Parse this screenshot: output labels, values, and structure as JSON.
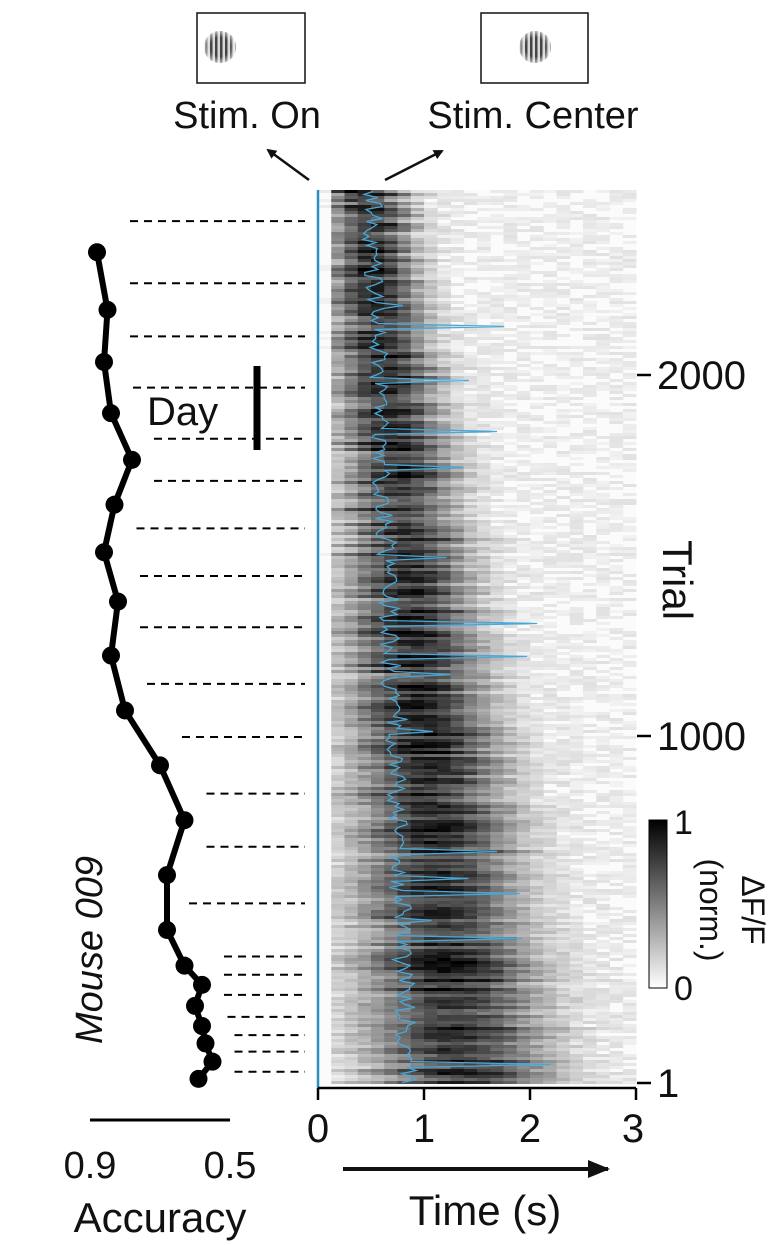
{
  "chart_data": [
    {
      "type": "line",
      "ylabel": "Mouse 009",
      "xlabel": "Accuracy",
      "x_tick_labels": [
        "0.9",
        "0.5"
      ],
      "xlim": [
        0.9,
        0.5
      ],
      "series": [
        {
          "values": [
            0.88,
            0.85,
            0.86,
            0.84,
            0.78,
            0.83,
            0.86,
            0.82,
            0.84,
            0.8,
            0.7,
            0.63,
            0.68,
            0.68,
            0.63,
            0.58,
            0.6,
            0.58,
            0.57,
            0.55,
            0.59
          ]
        }
      ],
      "day_scale_label": "Day"
    },
    {
      "type": "heatmap",
      "xlabel": "Time (s)",
      "ylabel": "Trial",
      "xlim": [
        0,
        3
      ],
      "ylim": [
        1,
        2450
      ],
      "x_ticks": [
        0,
        1,
        2,
        3
      ],
      "x_tick_labels": [
        "0",
        "1",
        "2",
        "3"
      ],
      "y_ticks": [
        1,
        1000,
        2000
      ],
      "y_tick_labels": [
        "1",
        "1000",
        "2000"
      ],
      "colorbar": {
        "label": "ΔF/F",
        "sublabel": "(norm.)",
        "min_label": "0",
        "max_label": "1",
        "range": [
          0,
          1
        ]
      },
      "stim_on_line_x": 0,
      "day_boundaries_trial": [
        40,
        95,
        140,
        190,
        250,
        305,
        355,
        500,
        655,
        800,
        955,
        1100,
        1255,
        1395,
        1525,
        1655,
        1770,
        1910,
        2050,
        2195,
        2365
      ]
    }
  ],
  "annotations": {
    "stim_on": "Stim. On",
    "stim_center": "Stim. Center"
  },
  "colors": {
    "trace": "#000000",
    "stim_line": "#2b8fbf",
    "center_trace": "#4aa8d8",
    "heatmap_high": "#000000",
    "heatmap_low": "#ffffff"
  }
}
